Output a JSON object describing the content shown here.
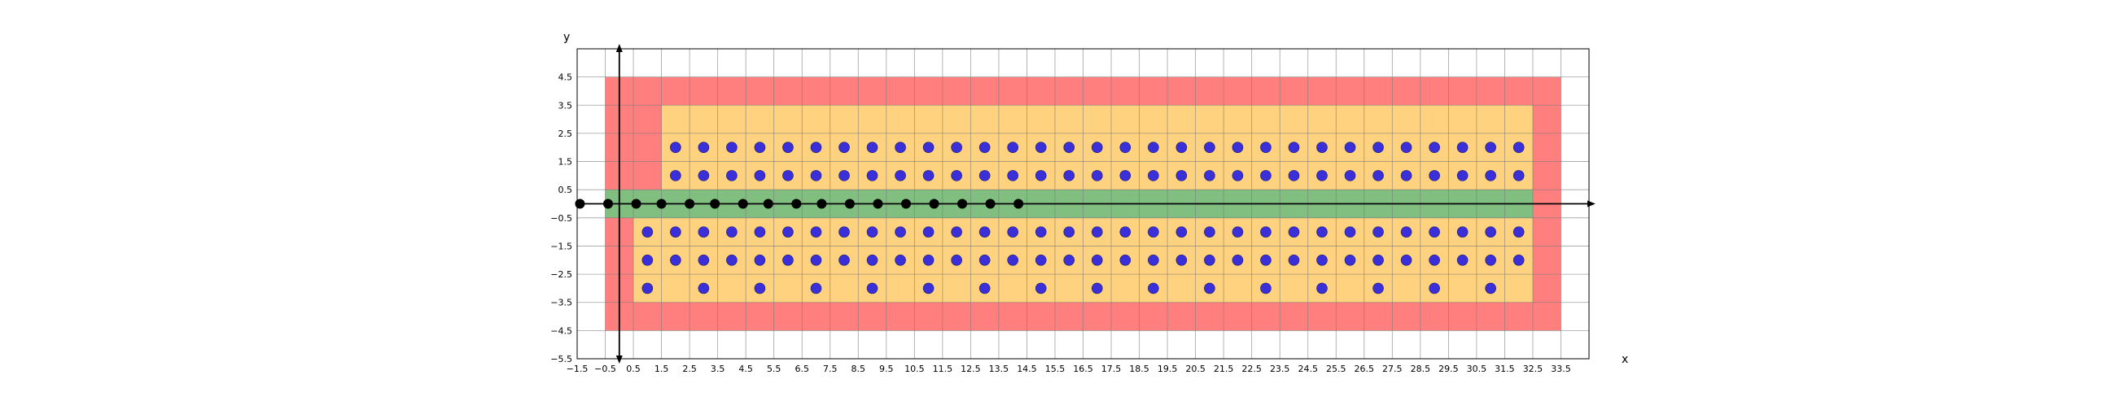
{
  "chart_data": {
    "type": "scatter",
    "title": "",
    "xlabel": "x",
    "ylabel": "y",
    "xlim": [
      -1.5,
      34.5
    ],
    "ylim": [
      -5.5,
      5.5
    ],
    "grid": true,
    "x_ticks": [
      -1.5,
      -0.5,
      0.5,
      1.5,
      2.5,
      3.5,
      4.5,
      5.5,
      6.5,
      7.5,
      8.5,
      9.5,
      10.5,
      11.5,
      12.5,
      13.5,
      14.5,
      15.5,
      16.5,
      17.5,
      18.5,
      19.5,
      20.5,
      21.5,
      22.5,
      23.5,
      24.5,
      25.5,
      26.5,
      27.5,
      28.5,
      29.5,
      30.5,
      31.5,
      32.5,
      33.5
    ],
    "x_tick_labels": [
      "−1.5",
      "−0.5",
      "0.5",
      "1.5",
      "2.5",
      "3.5",
      "4.5",
      "5.5",
      "6.5",
      "7.5",
      "8.5",
      "9.5",
      "10.5",
      "11.5",
      "12.5",
      "13.5",
      "14.5",
      "15.5",
      "16.5",
      "17.5",
      "18.5",
      "19.5",
      "20.5",
      "21.5",
      "22.5",
      "23.5",
      "24.5",
      "25.5",
      "26.5",
      "27.5",
      "28.5",
      "29.5",
      "30.5",
      "31.5",
      "32.5",
      "33.5"
    ],
    "y_ticks": [
      4.5,
      3.5,
      2.5,
      1.5,
      0.5,
      -0.5,
      -1.5,
      -2.5,
      -3.5,
      -4.5,
      -5.5
    ],
    "y_tick_labels": [
      "4.5",
      "3.5",
      "2.5",
      "1.5",
      "0.5",
      "−0.5",
      "−1.5",
      "−2.5",
      "−3.5",
      "−4.5",
      "−5.5"
    ],
    "regions": [
      {
        "name": "outer",
        "color": "#ff7f7f",
        "x": [
          -0.5,
          33.5
        ],
        "y": [
          -4.5,
          4.5
        ]
      },
      {
        "name": "inner-top",
        "color": "#ffd27f",
        "x": [
          1.5,
          32.5
        ],
        "y": [
          0.5,
          3.5
        ]
      },
      {
        "name": "inner-bottom",
        "color": "#ffd27f",
        "x": [
          0.5,
          32.5
        ],
        "y": [
          -3.5,
          -0.5
        ]
      },
      {
        "name": "band",
        "color": "#80bf80",
        "x": [
          -0.5,
          32.5
        ],
        "y": [
          -0.5,
          0.5
        ]
      }
    ],
    "series": [
      {
        "color": "#3b2fd9",
        "rows": [
          {
            "y": 2,
            "x_start": 2,
            "x_end": 32,
            "step": 1
          },
          {
            "y": 1,
            "x_start": 2,
            "x_end": 32,
            "step": 1
          },
          {
            "y": -1,
            "x_start": 1,
            "x_end": 32,
            "step": 1
          },
          {
            "y": -2,
            "x_start": 1,
            "x_end": 32,
            "step": 1
          },
          {
            "y": -3,
            "x_start": 1,
            "x_end": 31,
            "step": 2
          }
        ]
      },
      {
        "color": "#000000",
        "x": [
          -1.4,
          -0.4,
          0.6,
          1.5,
          2.5,
          3.4,
          4.4,
          5.3,
          6.3,
          7.2,
          8.2,
          9.2,
          10.2,
          11.2,
          12.2,
          13.2,
          14.2
        ],
        "y": [
          0,
          0,
          0,
          0,
          0,
          0,
          0,
          0,
          0,
          0,
          0,
          0,
          0,
          0,
          0,
          0,
          0
        ]
      }
    ]
  }
}
